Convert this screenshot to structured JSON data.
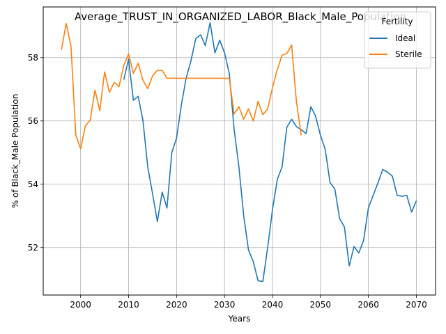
{
  "chart_data": {
    "type": "line",
    "title": "Average_TRUST_IN_ORGANIZED_LABOR_Black_Male_Population",
    "xlabel": "Years",
    "ylabel": "% of Black_Male Population",
    "xlim": [
      1992.2,
      2074.0
    ],
    "ylim": [
      50.5,
      59.6
    ],
    "xticks": [
      2000,
      2010,
      2020,
      2030,
      2040,
      2050,
      2060,
      2070
    ],
    "yticks": [
      52,
      54,
      56,
      58
    ],
    "grid": true,
    "legend": {
      "title": "Fertility",
      "position": "top-right"
    },
    "series": [
      {
        "name": "Ideal",
        "color": "#1f77b4",
        "x": [
          2009,
          2010,
          2011,
          2012,
          2013,
          2014,
          2015,
          2016,
          2017,
          2018,
          2019,
          2020,
          2021,
          2022,
          2023,
          2024,
          2025,
          2026,
          2027,
          2028,
          2029,
          2030,
          2031,
          2032,
          2033,
          2034,
          2035,
          2036,
          2037,
          2038,
          2039,
          2040,
          2041,
          2042,
          2043,
          2044,
          2045,
          2046,
          2047,
          2048,
          2049,
          2050,
          2051,
          2052,
          2053,
          2054,
          2055,
          2056,
          2057,
          2058,
          2059,
          2060,
          2061,
          2062,
          2063,
          2064,
          2065,
          2066,
          2067,
          2068,
          2069,
          2070
        ],
        "y": [
          57.3,
          57.95,
          56.65,
          56.78,
          56.0,
          54.55,
          53.7,
          52.82,
          53.75,
          53.25,
          55.0,
          55.45,
          56.5,
          57.35,
          57.9,
          58.6,
          58.72,
          58.38,
          59.1,
          58.15,
          58.55,
          58.15,
          57.5,
          55.75,
          54.55,
          53.0,
          51.92,
          51.55,
          50.95,
          50.93,
          52.0,
          53.2,
          54.15,
          54.55,
          55.8,
          56.05,
          55.82,
          55.72,
          55.6,
          56.45,
          56.15,
          55.55,
          55.1,
          54.05,
          53.85,
          52.92,
          52.65,
          51.42,
          52.03,
          51.83,
          52.23,
          53.25,
          53.65,
          54.05,
          54.47,
          54.38,
          54.25,
          53.65,
          53.62,
          53.65,
          53.12,
          53.48
        ]
      },
      {
        "name": "Sterile",
        "color": "#ff7f0e",
        "x": [
          1996,
          1997,
          1998,
          1999,
          2000,
          2001,
          2002,
          2003,
          2004,
          2005,
          2006,
          2007,
          2008,
          2009,
          2010,
          2011,
          2012,
          2013,
          2014,
          2015,
          2016,
          2017,
          2018,
          2019,
          2020,
          2021,
          2022,
          2023,
          2024,
          2025,
          2026,
          2027,
          2028,
          2029,
          2030,
          2031,
          2032,
          2033,
          2034,
          2035,
          2036,
          2037,
          2038,
          2039,
          2040,
          2041,
          2042,
          2043,
          2044,
          2045,
          2046
        ],
        "y": [
          58.25,
          59.08,
          58.35,
          55.55,
          55.12,
          55.85,
          56.02,
          56.97,
          56.32,
          57.55,
          56.9,
          57.22,
          57.08,
          57.75,
          58.12,
          57.5,
          57.82,
          57.28,
          57.02,
          57.42,
          57.6,
          57.6,
          57.35,
          57.35,
          57.35,
          57.35,
          57.35,
          57.35,
          57.35,
          57.35,
          57.35,
          57.35,
          57.35,
          57.35,
          57.35,
          57.35,
          56.22,
          56.45,
          56.05,
          56.38,
          56.0,
          56.62,
          56.2,
          56.38,
          57.05,
          57.62,
          58.08,
          58.13,
          58.4,
          56.6,
          55.55
        ]
      }
    ]
  }
}
